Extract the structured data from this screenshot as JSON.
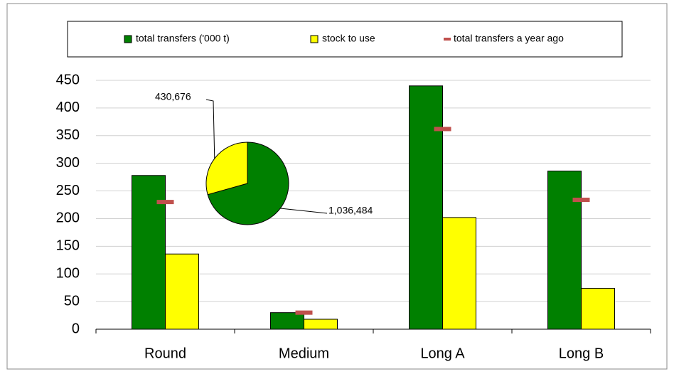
{
  "chart_data": [
    {
      "type": "bar",
      "categories": [
        "Round",
        "Medium",
        "Long A",
        "Long B"
      ],
      "series": [
        {
          "name": "total transfers ('000 t)",
          "color": "#008000",
          "values": [
            278,
            30,
            440,
            286
          ]
        },
        {
          "name": "stock to use",
          "color": "#ffff00",
          "values": [
            136,
            18,
            202,
            74
          ]
        },
        {
          "name": "total transfers a year ago",
          "color": "#c0504d",
          "marker": "dash",
          "values": [
            230,
            30,
            362,
            234
          ]
        }
      ],
      "ylim": [
        0,
        450
      ],
      "yticks": [
        0,
        50,
        100,
        150,
        200,
        250,
        300,
        350,
        400,
        450
      ],
      "grid": true,
      "legend": "top"
    },
    {
      "type": "pie",
      "values": [
        1036484,
        430676
      ],
      "value_labels": [
        "1,036,484",
        "430,676"
      ],
      "colors": [
        "#008000",
        "#ffff00"
      ]
    }
  ]
}
